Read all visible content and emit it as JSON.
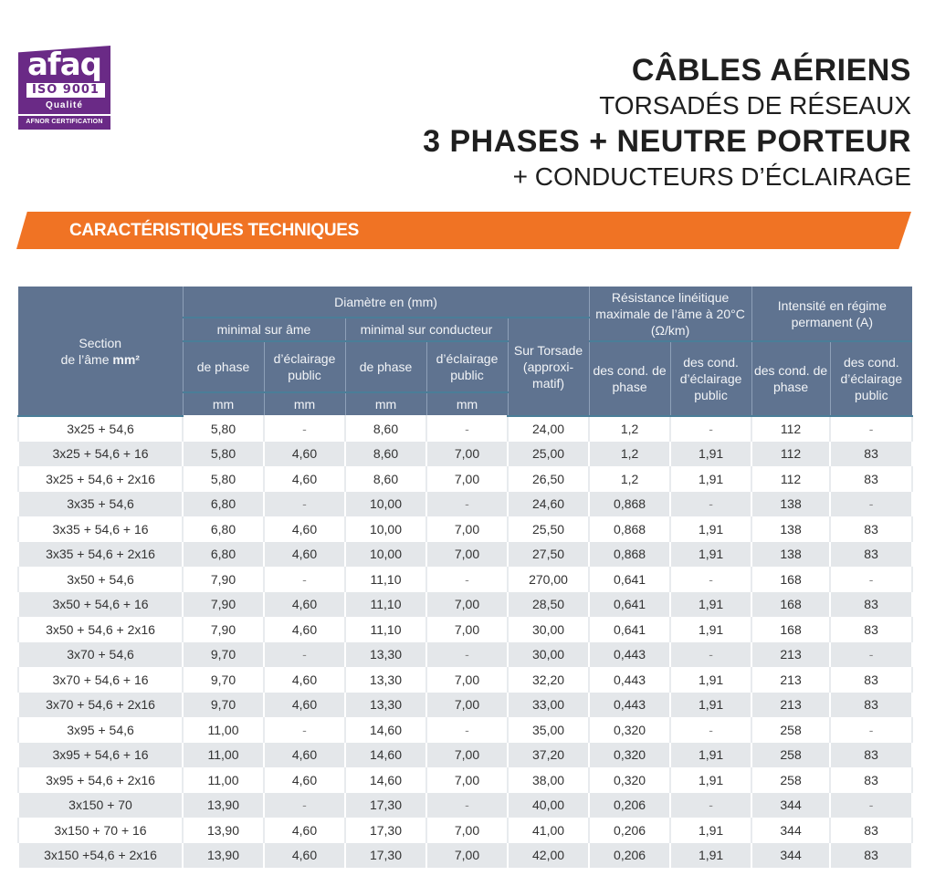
{
  "logo": {
    "brand": "afaq",
    "standard": "ISO 9001",
    "quality": "Qualité",
    "certifier": "AFNOR CERTIFICATION",
    "color": "#6a2a86"
  },
  "title": {
    "line1": "CÂBLES AÉRIENS",
    "line2": "TORSADÉS DE RÉSEAUX",
    "line3": "3 PHASES + NEUTRE PORTEUR",
    "line4": "+ CONDUCTEURS D’ÉCLAIRAGE"
  },
  "banner": {
    "label": "CARACTÉRISTIQUES TECHNIQUES",
    "color": "#f07324"
  },
  "table": {
    "header_color": "#5f7390",
    "headers": {
      "section_line1": "Section",
      "section_line2": "de l’âme ",
      "section_unit": "mm²",
      "diametre": "Diamètre en (mm)",
      "minimal_ame": "minimal sur âme",
      "minimal_conducteur": "minimal sur conducteur",
      "sur_torsade": "Sur Torsade (approxi-matif)",
      "resistance": "Résistance linéitique maximale de l’âme à 20°C (Ω/km)",
      "intensite": "Intensité en régime permanent (A)",
      "de_phase": "de phase",
      "eclairage_public": "d’éclairage public",
      "cond_phase": "des cond. de phase",
      "cond_eclairage": "des cond. d’éclairage public",
      "unit_mm": "mm"
    },
    "rows": [
      [
        "3x25 + 54,6",
        "5,80",
        "-",
        "8,60",
        "-",
        "24,00",
        "1,2",
        "-",
        "112",
        "-"
      ],
      [
        "3x25 + 54,6 + 16",
        "5,80",
        "4,60",
        "8,60",
        "7,00",
        "25,00",
        "1,2",
        "1,91",
        "112",
        "83"
      ],
      [
        "3x25 + 54,6 + 2x16",
        "5,80",
        "4,60",
        "8,60",
        "7,00",
        "26,50",
        "1,2",
        "1,91",
        "112",
        "83"
      ],
      [
        "3x35 + 54,6",
        "6,80",
        "-",
        "10,00",
        "-",
        "24,60",
        "0,868",
        "-",
        "138",
        "-"
      ],
      [
        "3x35 + 54,6 + 16",
        "6,80",
        "4,60",
        "10,00",
        "7,00",
        "25,50",
        "0,868",
        "1,91",
        "138",
        "83"
      ],
      [
        "3x35 + 54,6 + 2x16",
        "6,80",
        "4,60",
        "10,00",
        "7,00",
        "27,50",
        "0,868",
        "1,91",
        "138",
        "83"
      ],
      [
        "3x50 + 54,6",
        "7,90",
        "-",
        "11,10",
        "-",
        "270,00",
        "0,641",
        "-",
        "168",
        "-"
      ],
      [
        "3x50 + 54,6 + 16",
        "7,90",
        "4,60",
        "11,10",
        "7,00",
        "28,50",
        "0,641",
        "1,91",
        "168",
        "83"
      ],
      [
        "3x50 + 54,6 + 2x16",
        "7,90",
        "4,60",
        "11,10",
        "7,00",
        "30,00",
        "0,641",
        "1,91",
        "168",
        "83"
      ],
      [
        "3x70 + 54,6",
        "9,70",
        "-",
        "13,30",
        "-",
        "30,00",
        "0,443",
        "-",
        "213",
        "-"
      ],
      [
        "3x70 + 54,6 + 16",
        "9,70",
        "4,60",
        "13,30",
        "7,00",
        "32,20",
        "0,443",
        "1,91",
        "213",
        "83"
      ],
      [
        "3x70 + 54,6 + 2x16",
        "9,70",
        "4,60",
        "13,30",
        "7,00",
        "33,00",
        "0,443",
        "1,91",
        "213",
        "83"
      ],
      [
        "3x95 + 54,6",
        "11,00",
        "-",
        "14,60",
        "-",
        "35,00",
        "0,320",
        "-",
        "258",
        "-"
      ],
      [
        "3x95 + 54,6 + 16",
        "11,00",
        "4,60",
        "14,60",
        "7,00",
        "37,20",
        "0,320",
        "1,91",
        "258",
        "83"
      ],
      [
        "3x95 + 54,6 + 2x16",
        "11,00",
        "4,60",
        "14,60",
        "7,00",
        "38,00",
        "0,320",
        "1,91",
        "258",
        "83"
      ],
      [
        "3x150 + 70",
        "13,90",
        "-",
        "17,30",
        "-",
        "40,00",
        "0,206",
        "-",
        "344",
        "-"
      ],
      [
        "3x150 + 70 + 16",
        "13,90",
        "4,60",
        "17,30",
        "7,00",
        "41,00",
        "0,206",
        "1,91",
        "344",
        "83"
      ],
      [
        "3x150 +54,6 + 2x16",
        "13,90",
        "4,60",
        "17,30",
        "7,00",
        "42,00",
        "0,206",
        "1,91",
        "344",
        "83"
      ]
    ]
  }
}
